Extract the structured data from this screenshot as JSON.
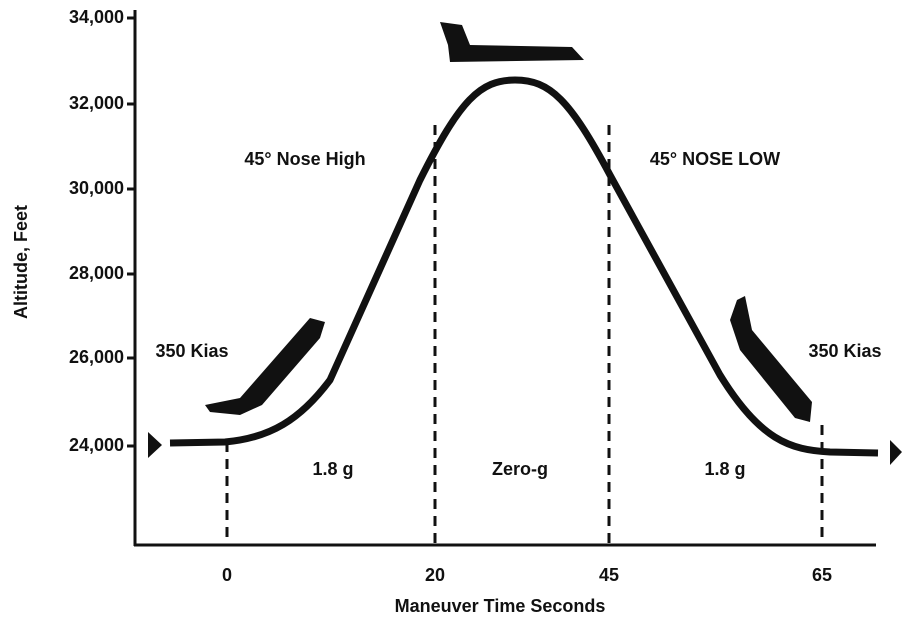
{
  "y_axis": {
    "label": "Altitude, Feet",
    "ticks": [
      "34,000",
      "32,000",
      "30,000",
      "28,000",
      "26,000",
      "24,000"
    ]
  },
  "x_axis": {
    "label": "Maneuver Time Seconds",
    "ticks": [
      "0",
      "20",
      "45",
      "65"
    ]
  },
  "annotations": {
    "nose_high": "45° Nose High",
    "nose_low": "45° NOSE LOW",
    "kias_left": "350 Kias",
    "kias_right": "350 Kias",
    "g_left": "1.8 g",
    "zero_g": "Zero-g",
    "g_right": "1.8 g"
  }
}
